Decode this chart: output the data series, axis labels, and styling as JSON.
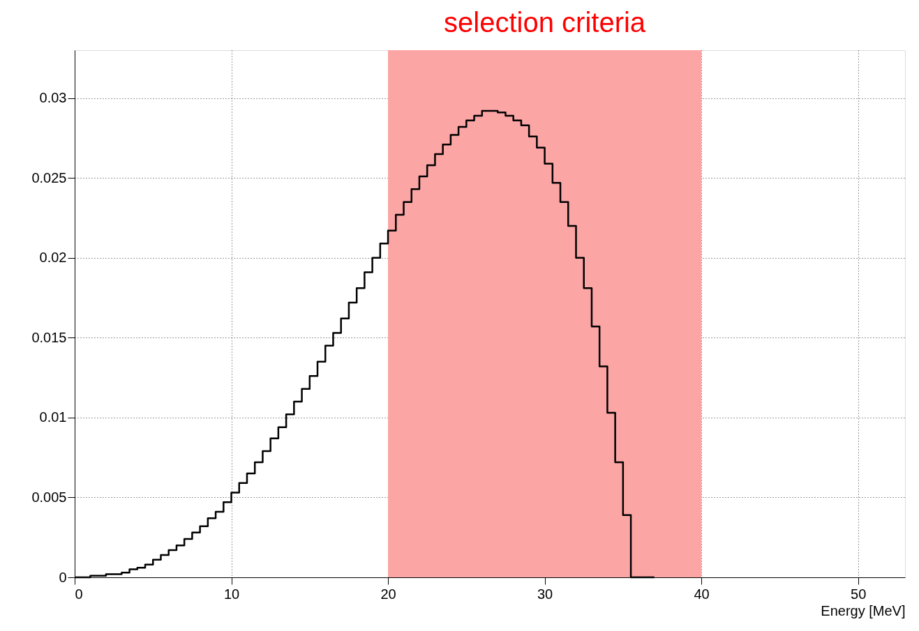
{
  "chart_data": {
    "type": "histogram",
    "xlabel": "Energy [MeV]",
    "bins": [
      0,
      0.5,
      1,
      1.5,
      2,
      2.5,
      3,
      3.5,
      4,
      4.5,
      5,
      5.5,
      6,
      6.5,
      7,
      7.5,
      8,
      8.5,
      9,
      9.5,
      10,
      10.5,
      11,
      11.5,
      12,
      12.5,
      13,
      13.5,
      14,
      14.5,
      15,
      15.5,
      16,
      16.5,
      17,
      17.5,
      18,
      18.5,
      19,
      19.5,
      20,
      20.5,
      21,
      21.5,
      22,
      22.5,
      23,
      23.5,
      24,
      24.5,
      25,
      25.5,
      26,
      26.5,
      27,
      27.5,
      28,
      28.5,
      29,
      29.5,
      30,
      30.5,
      31,
      31.5,
      32,
      32.5,
      33,
      33.5,
      34,
      34.5,
      35,
      35.5,
      36,
      36.5,
      37
    ],
    "values": [
      0,
      0,
      0.0001,
      0.0001,
      0.0002,
      0.0002,
      0.0003,
      0.0005,
      0.0006,
      0.0008,
      0.0011,
      0.0014,
      0.0017,
      0.002,
      0.0024,
      0.0028,
      0.0032,
      0.0037,
      0.0041,
      0.0047,
      0.0053,
      0.0059,
      0.0065,
      0.0072,
      0.0079,
      0.0087,
      0.0094,
      0.0102,
      0.011,
      0.0118,
      0.0126,
      0.0135,
      0.0145,
      0.0153,
      0.0162,
      0.0172,
      0.0181,
      0.0191,
      0.02,
      0.0209,
      0.0217,
      0.0227,
      0.0235,
      0.0243,
      0.0251,
      0.0258,
      0.0265,
      0.0271,
      0.0277,
      0.0282,
      0.0286,
      0.0289,
      0.0292,
      0.0292,
      0.0291,
      0.0289,
      0.0286,
      0.0283,
      0.0276,
      0.0269,
      0.0259,
      0.0247,
      0.0235,
      0.022,
      0.02,
      0.0181,
      0.0157,
      0.0132,
      0.0103,
      0.0072,
      0.0039,
      0,
      0,
      0
    ],
    "color": "#000000",
    "bands": [
      {
        "axis": "x",
        "from": 20,
        "to": 40,
        "label": "selection criteria",
        "color": "#fca5a5"
      }
    ],
    "xlim": [
      0,
      53
    ],
    "xticks": [
      0,
      10,
      20,
      30,
      40,
      50
    ],
    "ylim": [
      0,
      0.033
    ],
    "yticks": [
      0,
      0.005,
      0.01,
      0.015,
      0.02,
      0.025,
      0.03
    ],
    "grid": true
  }
}
